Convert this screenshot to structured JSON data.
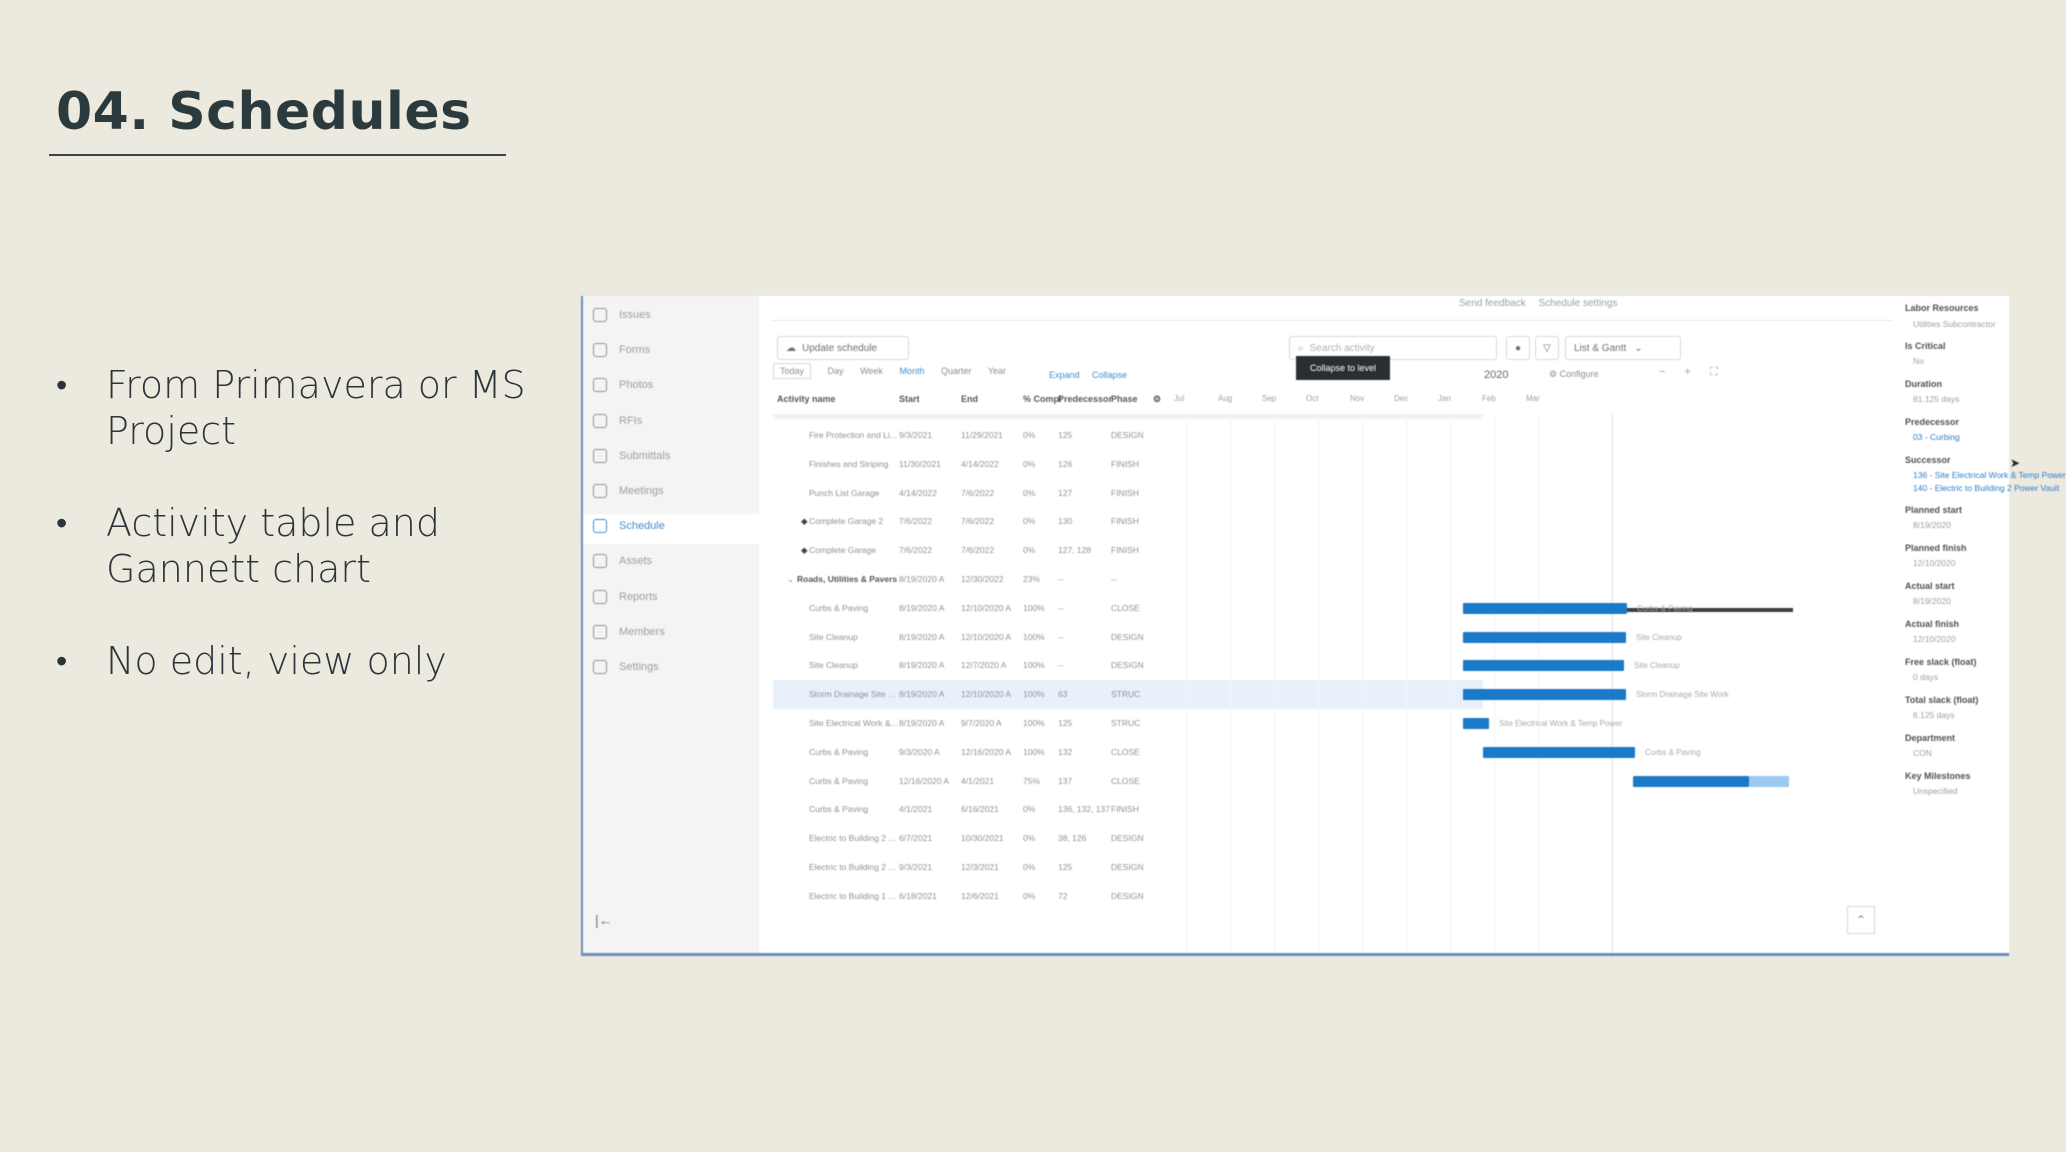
{
  "slide": {
    "title": "04. Schedules",
    "bullets": [
      "From Primavera or MS Project",
      "Activity table and Gannett chart",
      "No edit, view only"
    ]
  },
  "app": {
    "sidebar": {
      "items": [
        {
          "label": "Issues",
          "icon": "issues-icon"
        },
        {
          "label": "Forms",
          "icon": "forms-icon"
        },
        {
          "label": "Photos",
          "icon": "photos-icon"
        },
        {
          "label": "RFIs",
          "icon": "rfis-icon"
        },
        {
          "label": "Submittals",
          "icon": "submittals-icon"
        },
        {
          "label": "Meetings",
          "icon": "meetings-icon"
        },
        {
          "label": "Schedule",
          "icon": "schedule-icon",
          "active": true
        },
        {
          "label": "Assets",
          "icon": "assets-icon"
        },
        {
          "label": "Reports",
          "icon": "reports-icon"
        },
        {
          "label": "Members",
          "icon": "members-icon"
        },
        {
          "label": "Settings",
          "icon": "settings-icon"
        }
      ]
    },
    "toolbar": {
      "send_feedback": "Send feedback",
      "schedule_settings": "Schedule settings",
      "update_schedule": "Update schedule",
      "search_placeholder": "Search activity",
      "view_mode": "List & Gantt",
      "tooltip": "Collapse to level"
    },
    "timescale": [
      "Today",
      "Day",
      "Week",
      "Month",
      "Quarter",
      "Year"
    ],
    "expand_label": "Expand",
    "collapse_label": "Collapse",
    "year": "2020",
    "configure": "Configure",
    "columns": [
      "Activity name",
      "Start",
      "End",
      "% Compl",
      "Predecessor",
      "Phase"
    ],
    "months": [
      "Jul",
      "Aug",
      "Sep",
      "Oct",
      "Nov",
      "Dec",
      "Jan",
      "Feb",
      "Mar"
    ],
    "rows": [
      {
        "name": "Fire Protection and Li...",
        "start": "9/3/2021",
        "end": "11/29/2021",
        "pct": "0%",
        "pred": "125",
        "phase": "DESIGN"
      },
      {
        "name": "Finishes and Striping",
        "start": "11/30/2021",
        "end": "4/14/2022",
        "pct": "0%",
        "pred": "126",
        "phase": "FINISH"
      },
      {
        "name": "Punch List Garage",
        "start": "4/14/2022",
        "end": "7/6/2022",
        "pct": "0%",
        "pred": "127",
        "phase": "FINISH"
      },
      {
        "name": "Complete Garage 2",
        "start": "7/6/2022",
        "end": "7/6/2022",
        "pct": "0%",
        "pred": "130",
        "phase": "FINISH",
        "milestone": true
      },
      {
        "name": "Complete Garage",
        "start": "7/6/2022",
        "end": "7/6/2022",
        "pct": "0%",
        "pred": "127, 128",
        "phase": "FINISH",
        "milestone": true
      },
      {
        "name": "Roads, Utilities & Pavers",
        "start": "8/19/2020 A",
        "end": "12/30/2022",
        "pct": "23%",
        "pred": "--",
        "phase": "--",
        "section": true
      },
      {
        "name": "Curbs & Paving",
        "start": "8/19/2020 A",
        "end": "12/10/2020 A",
        "pct": "100%",
        "pred": "--",
        "phase": "CLOSE"
      },
      {
        "name": "Site Cleanup",
        "start": "8/19/2020 A",
        "end": "12/10/2020 A",
        "pct": "100%",
        "pred": "--",
        "phase": "DESIGN"
      },
      {
        "name": "Site Cleanup",
        "start": "8/19/2020 A",
        "end": "12/7/2020 A",
        "pct": "100%",
        "pred": "--",
        "phase": "DESIGN"
      },
      {
        "name": "Storm Drainage Site ...",
        "start": "8/19/2020 A",
        "end": "12/10/2020 A",
        "pct": "100%",
        "pred": "63",
        "phase": "STRUC",
        "highlight": true
      },
      {
        "name": "Site Electrical Work &...",
        "start": "8/19/2020 A",
        "end": "9/7/2020 A",
        "pct": "100%",
        "pred": "125",
        "phase": "STRUC"
      },
      {
        "name": "Curbs & Paving",
        "start": "9/3/2020 A",
        "end": "12/16/2020 A",
        "pct": "100%",
        "pred": "132",
        "phase": "CLOSE"
      },
      {
        "name": "Curbs & Paving",
        "start": "12/16/2020 A",
        "end": "4/1/2021",
        "pct": "75%",
        "pred": "137",
        "phase": "CLOSE"
      },
      {
        "name": "Curbs & Paving",
        "start": "4/1/2021",
        "end": "6/16/2021",
        "pct": "0%",
        "pred": "136, 132, 137",
        "phase": "FINISH"
      },
      {
        "name": "Electric to Building 2 ...",
        "start": "6/7/2021",
        "end": "10/30/2021",
        "pct": "0%",
        "pred": "38, 126",
        "phase": "DESIGN"
      },
      {
        "name": "Electric to Building 2 ...",
        "start": "9/3/2021",
        "end": "12/3/2021",
        "pct": "0%",
        "pred": "125",
        "phase": "DESIGN"
      },
      {
        "name": "Electric to Building 1 ...",
        "start": "6/18/2021",
        "end": "12/6/2021",
        "pct": "0%",
        "pred": "72",
        "phase": "DESIGN"
      }
    ],
    "gantt_labels": {
      "r6": "Curbs & Paving",
      "r7": "Site Cleanup",
      "r8": "Site Cleanup",
      "r9": "Storm Drainage Site Work",
      "r10": "Site Electrical Work & Temp Power",
      "r11": "Curbs & Paving"
    },
    "details": {
      "labor_resources_label": "Labor Resources",
      "labor_resources": "Utilities Subcontractor",
      "is_critical_label": "Is Critical",
      "is_critical": "No",
      "duration_label": "Duration",
      "duration": "81.125 days",
      "predecessor_label": "Predecessor",
      "predecessor": "03 - Curbing",
      "successor_label": "Successor",
      "successor_1": "136 - Site Electrical Work & Temp Power",
      "successor_2": "140 - Electric to Building 2 Power Vault",
      "planned_start_label": "Planned start",
      "planned_start": "8/19/2020",
      "planned_finish_label": "Planned finish",
      "planned_finish": "12/10/2020",
      "actual_start_label": "Actual start",
      "actual_start": "8/19/2020",
      "actual_finish_label": "Actual finish",
      "actual_finish": "12/10/2020",
      "free_slack_label": "Free slack (float)",
      "free_slack": "0 days",
      "total_slack_label": "Total slack (float)",
      "total_slack": "6.125 days",
      "department_label": "Department",
      "department": "CON",
      "key_milestones_label": "Key Milestones",
      "key_milestones": "Unspecified"
    }
  }
}
